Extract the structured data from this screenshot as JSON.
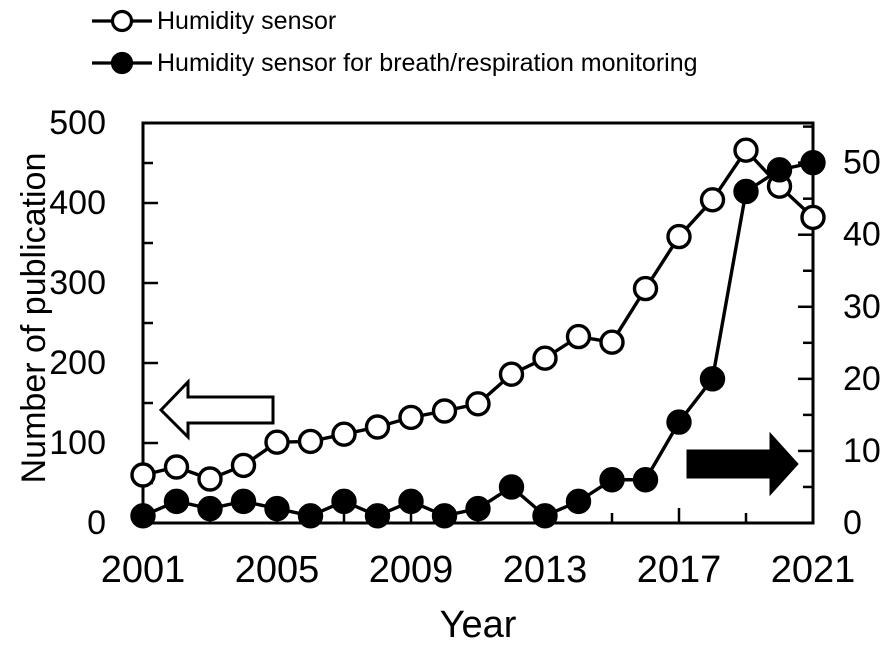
{
  "figure": {
    "background": "#ffffff",
    "ink": "#000000"
  },
  "legend": {
    "items": [
      {
        "label": "Humidity sensor",
        "marker": "open-circle"
      },
      {
        "label": "Humidity sensor for breath/respiration monitoring",
        "marker": "filled-circle"
      }
    ]
  },
  "chart_data": {
    "type": "line",
    "x": [
      2001,
      2002,
      2003,
      2004,
      2005,
      2006,
      2007,
      2008,
      2009,
      2010,
      2011,
      2012,
      2013,
      2014,
      2015,
      2016,
      2017,
      2018,
      2019,
      2020,
      2021
    ],
    "xlabel": "Year",
    "x_major_ticks": [
      2001,
      2005,
      2009,
      2013,
      2017,
      2021
    ],
    "x_minor_ticks": [
      2003,
      2007,
      2011,
      2015,
      2019
    ],
    "left_axis": {
      "label": "Number of publication",
      "range": [
        0,
        500
      ],
      "major_tick_step": 100,
      "minor_tick_step": 50
    },
    "right_axis": {
      "range": [
        0,
        50
      ],
      "major_tick_step": 10,
      "minor_tick_step": 5,
      "axis_top_value": 55.5
    },
    "series": [
      {
        "name": "Humidity sensor",
        "axis": "left",
        "marker": "open-circle",
        "values": [
          60,
          70,
          55,
          72,
          101,
          102,
          111,
          120,
          132,
          140,
          149,
          186,
          206,
          233,
          226,
          293,
          358,
          404,
          466,
          421,
          382
        ]
      },
      {
        "name": "Humidity sensor for breath/respiration monitoring",
        "axis": "right",
        "marker": "filled-circle",
        "values": [
          1,
          3,
          2,
          3,
          2,
          1,
          3,
          1,
          3,
          1,
          2,
          5,
          1,
          3,
          6,
          6,
          14,
          20,
          46,
          49,
          50
        ]
      }
    ],
    "annotations": [
      {
        "name": "left-axis-arrow",
        "shape": "block-arrow-left",
        "fill": "open"
      },
      {
        "name": "right-axis-arrow",
        "shape": "block-arrow-right",
        "fill": "solid"
      }
    ],
    "grid": false,
    "legend_position": "top-left"
  }
}
